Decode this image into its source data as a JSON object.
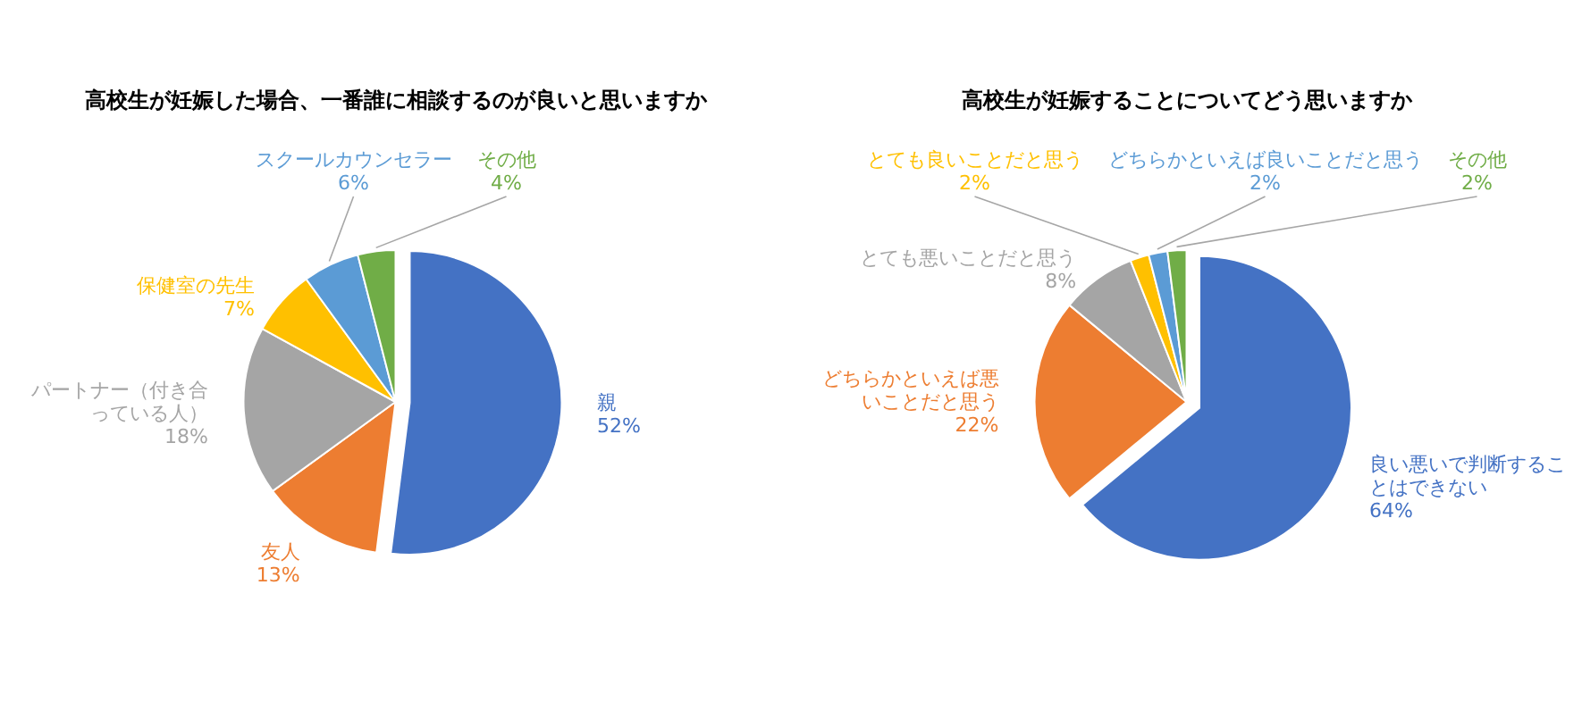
{
  "chart_data": [
    {
      "type": "pie",
      "title": "高校生が妊娠した場合、一番誰に相談するのが良いと思いますか",
      "categories": [
        "親",
        "友人",
        "パートナー（付き合っている人）",
        "保健室の先生",
        "スクールカウンセラー",
        "その他"
      ],
      "values": [
        52,
        13,
        18,
        7,
        6,
        4
      ],
      "colors": [
        "#4472c4",
        "#ed7d31",
        "#a5a5a5",
        "#ffc000",
        "#5b9bd5",
        "#70ad47"
      ],
      "value_labels": [
        "52%",
        "13%",
        "18%",
        "7%",
        "6%",
        "4%"
      ]
    },
    {
      "type": "pie",
      "title": "高校生が妊娠することについてどう思いますか",
      "categories": [
        "良い悪いで判断することはできない",
        "どちらかといえば悪いことだと思う",
        "とても悪いことだと思う",
        "とても良いことだと思う",
        "どちらかといえば良いことだと思う",
        "その他"
      ],
      "values": [
        64,
        22,
        8,
        2,
        2,
        2
      ],
      "colors": [
        "#4472c4",
        "#ed7d31",
        "#a5a5a5",
        "#ffc000",
        "#5b9bd5",
        "#70ad47"
      ],
      "value_labels": [
        "64%",
        "22%",
        "8%",
        "2%",
        "2%",
        "2%"
      ]
    }
  ]
}
